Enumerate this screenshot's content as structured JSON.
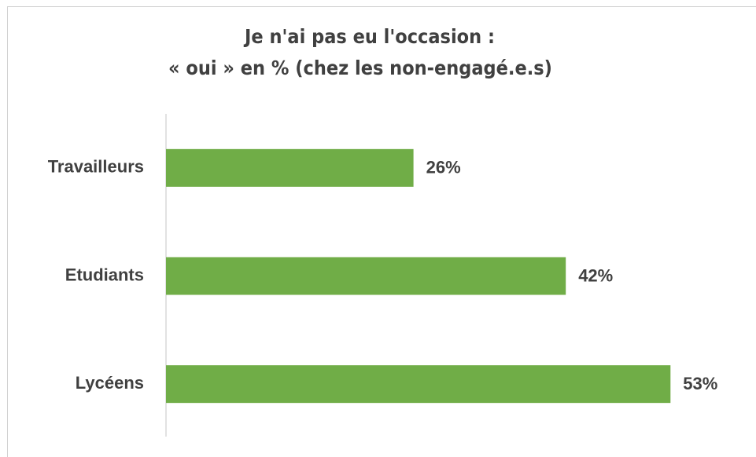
{
  "chart_data": {
    "type": "hbar",
    "title": [
      "Je n'ai pas eu l'occasion :",
      "« oui » en % (chez les non-engagé.e.s)"
    ],
    "categories": [
      "Travailleurs",
      "Etudiants",
      "Lycéens"
    ],
    "values": [
      26,
      42,
      53
    ],
    "value_labels": [
      "26%",
      "42%",
      "53%"
    ],
    "color": "#70ad47",
    "xlim": [
      0,
      60
    ]
  }
}
